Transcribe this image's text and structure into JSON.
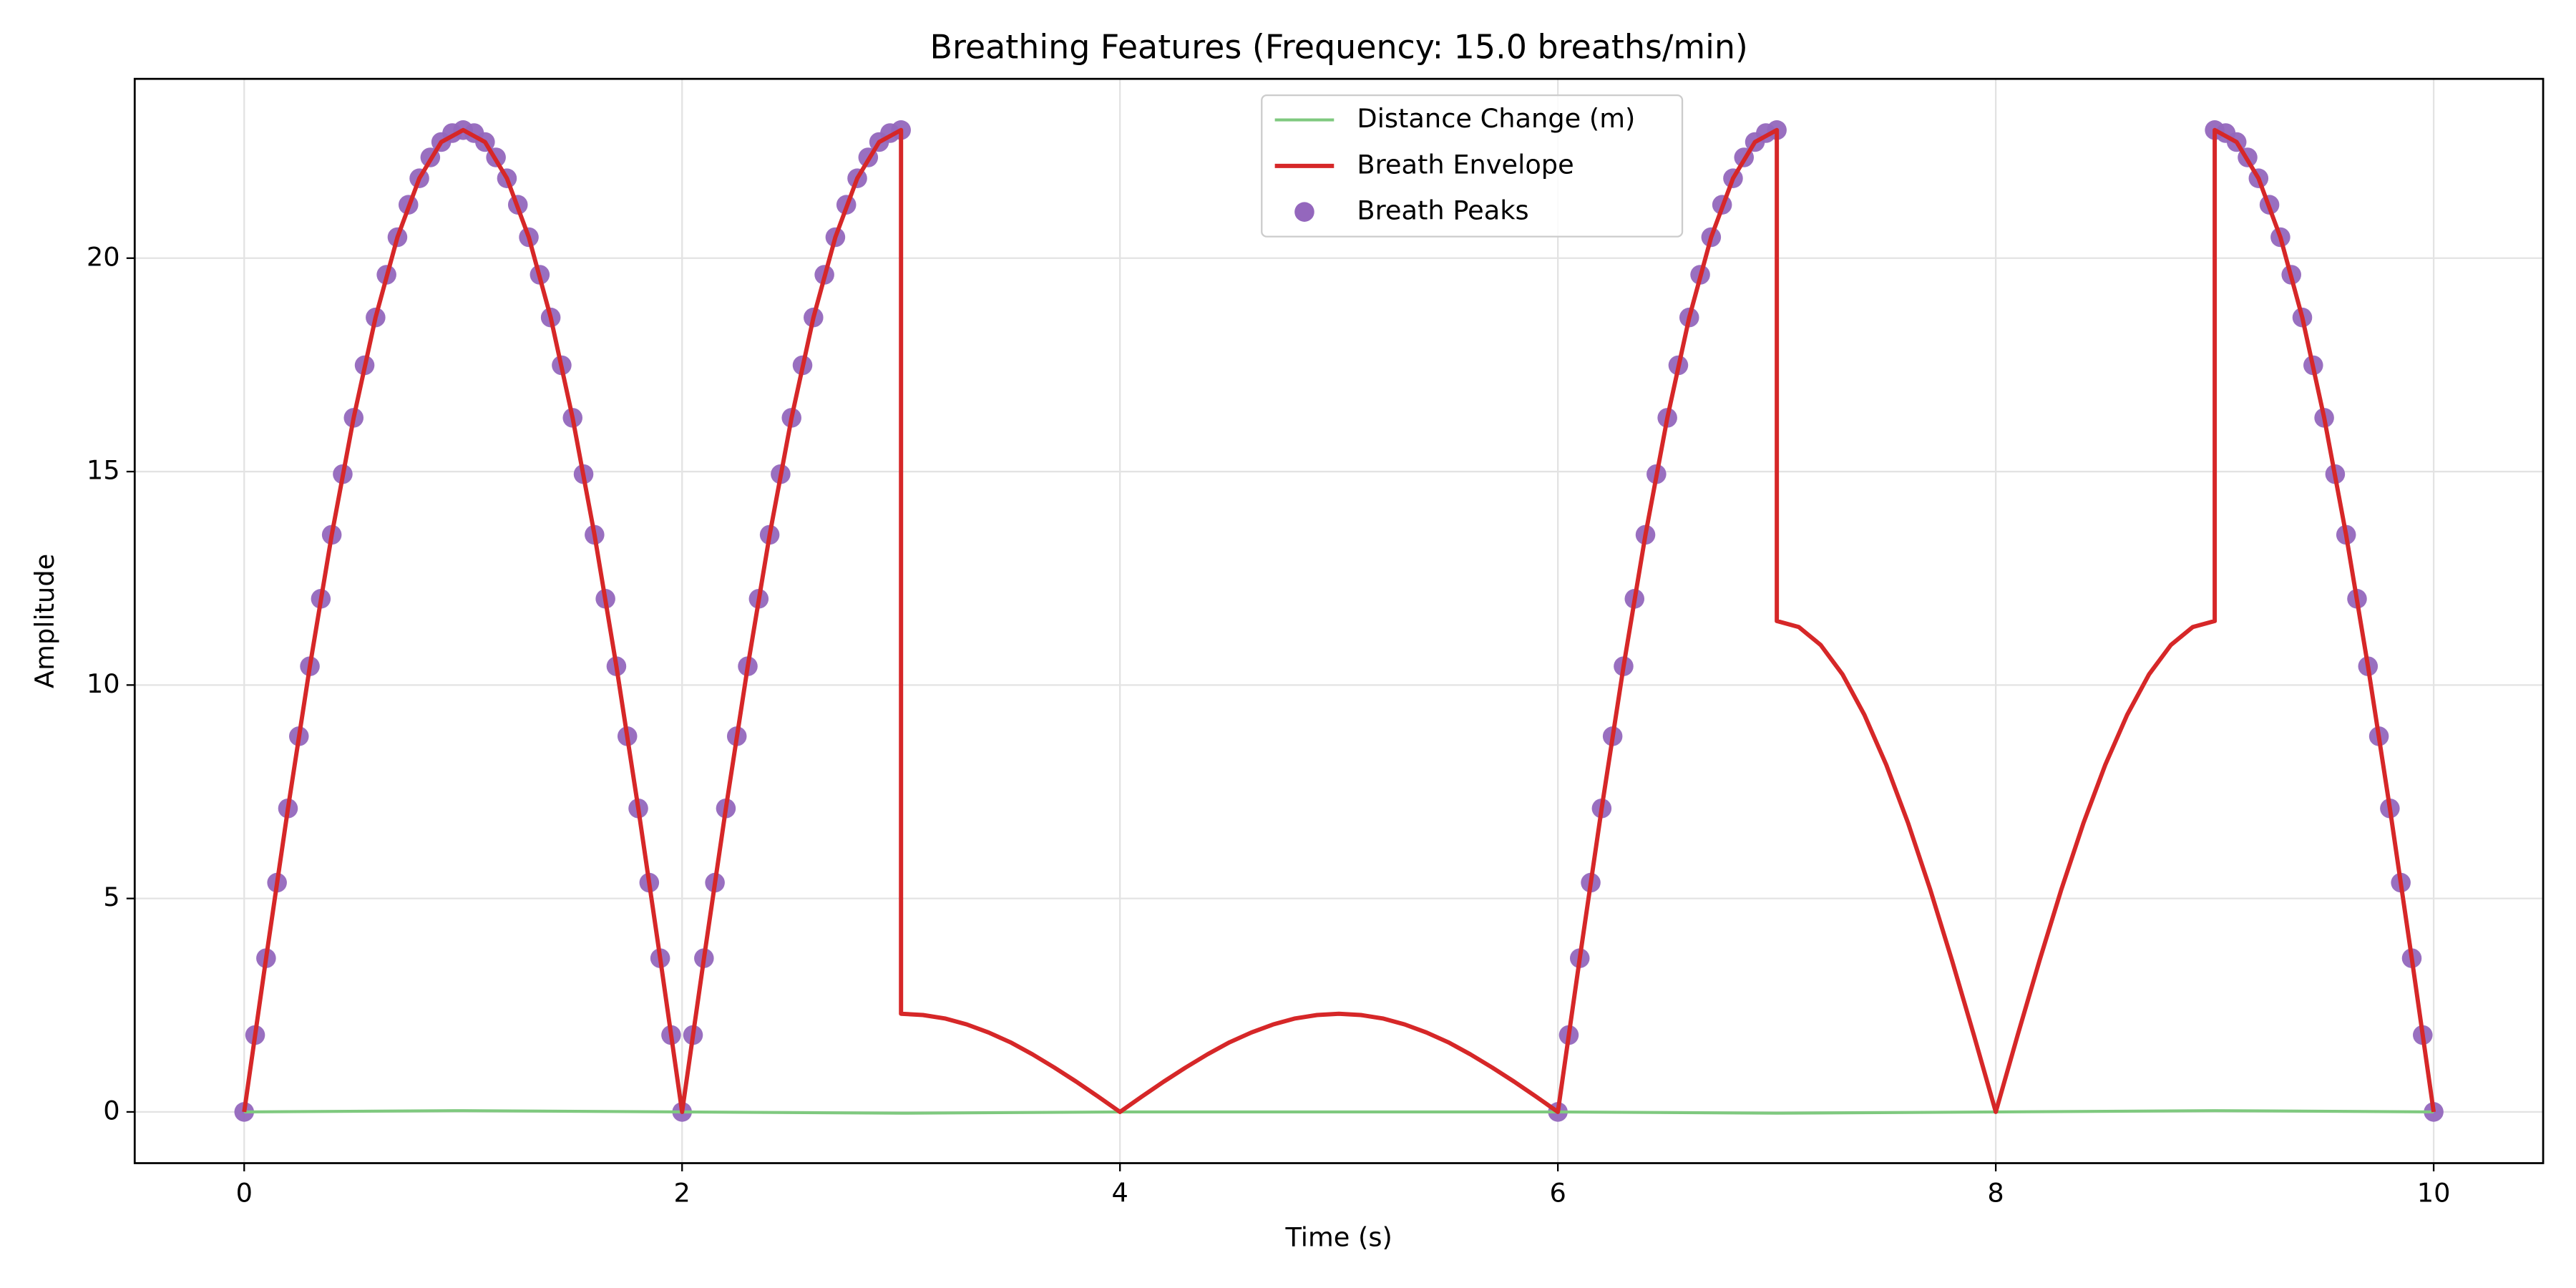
{
  "chart_data": {
    "type": "line",
    "title": "Breathing Features (Frequency: 15.0 breaths/min)",
    "x_label": "Time (s)",
    "y_label": "Amplitude",
    "xlim": [
      -0.5,
      10.5
    ],
    "xticks": [
      0,
      2,
      4,
      6,
      8,
      10
    ],
    "ylim": [
      -1.2,
      24.2
    ],
    "yticks": [
      0,
      5,
      10,
      15,
      20
    ],
    "grid": true,
    "legend": "upper center",
    "series": [
      {
        "name": "Distance Change (m)",
        "type": "line",
        "color": "#7fc97f",
        "x": [
          0,
          1,
          2,
          3,
          4,
          5,
          6,
          7,
          8,
          9,
          10
        ],
        "values": [
          0,
          0.03,
          0,
          -0.03,
          0,
          0,
          0,
          -0.03,
          0,
          0.03,
          0
        ]
      },
      {
        "name": "Breath Envelope",
        "type": "line",
        "color": "#d62728",
        "x": [
          0,
          0.1,
          0.2,
          0.3,
          0.4,
          0.5,
          0.6,
          0.7,
          0.8,
          0.9,
          1.0,
          1.1,
          1.2,
          1.3,
          1.4,
          1.5,
          1.6,
          1.7,
          1.8,
          1.9,
          2.0,
          2.1,
          2.2,
          2.3,
          2.4,
          2.5,
          2.6,
          2.7,
          2.8,
          2.9,
          3.0,
          3.0,
          3.1,
          3.2,
          3.3,
          3.4,
          3.5,
          3.6,
          3.7,
          3.8,
          3.9,
          4.0,
          4.1,
          4.2,
          4.3,
          4.4,
          4.5,
          4.6,
          4.7,
          4.8,
          4.9,
          5.0,
          5.1,
          5.2,
          5.3,
          5.4,
          5.5,
          5.6,
          5.7,
          5.8,
          5.9,
          6.0,
          6.1,
          6.2,
          6.3,
          6.4,
          6.5,
          6.6,
          6.7,
          6.8,
          6.9,
          7.0,
          7.0,
          7.1,
          7.2,
          7.3,
          7.4,
          7.5,
          7.6,
          7.7,
          7.8,
          7.9,
          8.0,
          8.1,
          8.2,
          8.3,
          8.4,
          8.5,
          8.6,
          8.7,
          8.8,
          8.9,
          9.0,
          9.0,
          9.1,
          9.2,
          9.3,
          9.4,
          9.5,
          9.6,
          9.7,
          9.8,
          9.9,
          10.0
        ],
        "values": [
          0,
          3.6,
          7.11,
          10.44,
          13.52,
          16.26,
          18.61,
          20.49,
          21.87,
          22.72,
          23,
          22.72,
          21.87,
          20.49,
          18.61,
          16.26,
          13.52,
          10.44,
          7.11,
          3.6,
          0,
          3.6,
          7.11,
          10.44,
          13.52,
          16.26,
          18.61,
          20.49,
          21.87,
          22.72,
          23,
          2.3,
          2.27,
          2.19,
          2.05,
          1.86,
          1.63,
          1.35,
          1.04,
          0.71,
          0.36,
          0,
          0.36,
          0.71,
          1.04,
          1.35,
          1.63,
          1.86,
          2.05,
          2.19,
          2.27,
          2.3,
          2.27,
          2.19,
          2.05,
          1.86,
          1.63,
          1.35,
          1.04,
          0.71,
          0.36,
          0,
          3.6,
          7.11,
          10.44,
          13.52,
          16.26,
          18.61,
          20.49,
          21.87,
          22.72,
          23,
          11.5,
          11.36,
          10.94,
          10.25,
          9.3,
          8.13,
          6.76,
          5.22,
          3.55,
          1.8,
          0,
          1.8,
          3.55,
          5.22,
          6.76,
          8.13,
          9.3,
          10.25,
          10.94,
          11.36,
          11.5,
          23,
          22.72,
          21.87,
          20.49,
          18.61,
          16.26,
          13.52,
          10.44,
          7.11,
          3.6,
          0
        ]
      },
      {
        "name": "Breath Peaks",
        "type": "scatter",
        "color": "#9467bd",
        "x": [
          0,
          0.05,
          0.1,
          0.15,
          0.2,
          0.25,
          0.3,
          0.35,
          0.4,
          0.45,
          0.5,
          0.55,
          0.6,
          0.65,
          0.7,
          0.75,
          0.8,
          0.85,
          0.9,
          0.95,
          1.0,
          1.05,
          1.1,
          1.15,
          1.2,
          1.25,
          1.3,
          1.35,
          1.4,
          1.45,
          1.5,
          1.55,
          1.6,
          1.65,
          1.7,
          1.75,
          1.8,
          1.85,
          1.9,
          1.95,
          2.0,
          2.05,
          2.1,
          2.15,
          2.2,
          2.25,
          2.3,
          2.35,
          2.4,
          2.45,
          2.5,
          2.55,
          2.6,
          2.65,
          2.7,
          2.75,
          2.8,
          2.85,
          2.9,
          2.95,
          3.0,
          6.0,
          6.05,
          6.1,
          6.15,
          6.2,
          6.25,
          6.3,
          6.35,
          6.4,
          6.45,
          6.5,
          6.55,
          6.6,
          6.65,
          6.7,
          6.75,
          6.8,
          6.85,
          6.9,
          6.95,
          7.0,
          9.0,
          9.05,
          9.1,
          9.15,
          9.2,
          9.25,
          9.3,
          9.35,
          9.4,
          9.45,
          9.5,
          9.55,
          9.6,
          9.65,
          9.7,
          9.75,
          9.8,
          9.85,
          9.9,
          9.95,
          10.0
        ],
        "values": [
          0,
          1.8,
          3.6,
          5.37,
          7.11,
          8.8,
          10.44,
          12.02,
          13.52,
          14.94,
          16.26,
          17.49,
          18.61,
          19.61,
          20.49,
          21.25,
          21.87,
          22.36,
          22.72,
          22.93,
          23,
          22.93,
          22.72,
          22.36,
          21.87,
          21.25,
          20.49,
          19.61,
          18.61,
          17.49,
          16.26,
          14.94,
          13.52,
          12.02,
          10.44,
          8.8,
          7.11,
          5.37,
          3.6,
          1.8,
          0,
          1.8,
          3.6,
          5.37,
          7.11,
          8.8,
          10.44,
          12.02,
          13.52,
          14.94,
          16.26,
          17.49,
          18.61,
          19.61,
          20.49,
          21.25,
          21.87,
          22.36,
          22.72,
          22.93,
          23,
          0,
          1.8,
          3.6,
          5.37,
          7.11,
          8.8,
          10.44,
          12.02,
          13.52,
          14.94,
          16.26,
          17.49,
          18.61,
          19.61,
          20.49,
          21.25,
          21.87,
          22.36,
          22.72,
          22.93,
          23,
          23,
          22.93,
          22.72,
          22.36,
          21.87,
          21.25,
          20.49,
          19.61,
          18.61,
          17.49,
          16.26,
          14.94,
          13.52,
          12.02,
          10.44,
          8.8,
          7.11,
          5.37,
          3.6,
          1.8,
          0
        ]
      }
    ]
  }
}
